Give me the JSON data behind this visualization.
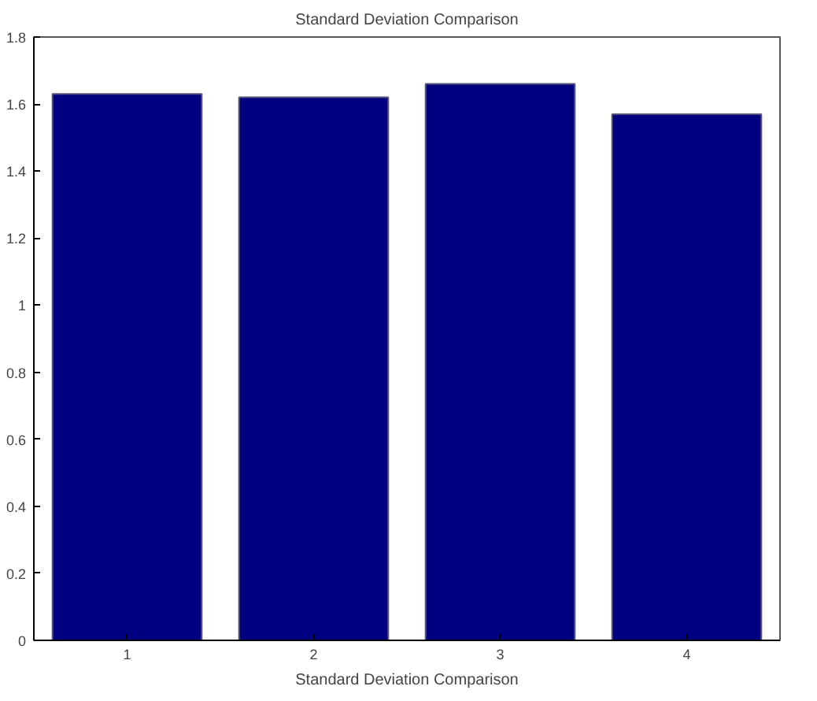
{
  "chart_data": {
    "type": "bar",
    "title": "Standard Deviation Comparison",
    "xlabel": "Standard Deviation Comparison",
    "categories": [
      "1",
      "2",
      "3",
      "4"
    ],
    "values": [
      1.63,
      1.62,
      1.66,
      1.57
    ],
    "color": "#000080",
    "ylim": [
      0,
      1.8
    ],
    "yticks": [
      0,
      0.2,
      0.4,
      0.6,
      0.8,
      1,
      1.2,
      1.4,
      1.6,
      1.8
    ],
    "grid": false
  }
}
